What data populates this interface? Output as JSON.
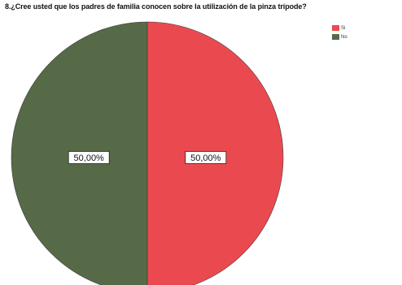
{
  "chart_data": {
    "type": "pie",
    "title": "8.¿Cree usted que los padres de familia conocen sobre la utilización de la pinza trípode?",
    "legend_position": "top-right",
    "slices": [
      {
        "label": "Si",
        "value": 50.0,
        "display": "50,00%",
        "color": "#ea4a4f"
      },
      {
        "label": "No",
        "value": 50.0,
        "display": "50,00%",
        "color": "#566a47"
      }
    ]
  }
}
